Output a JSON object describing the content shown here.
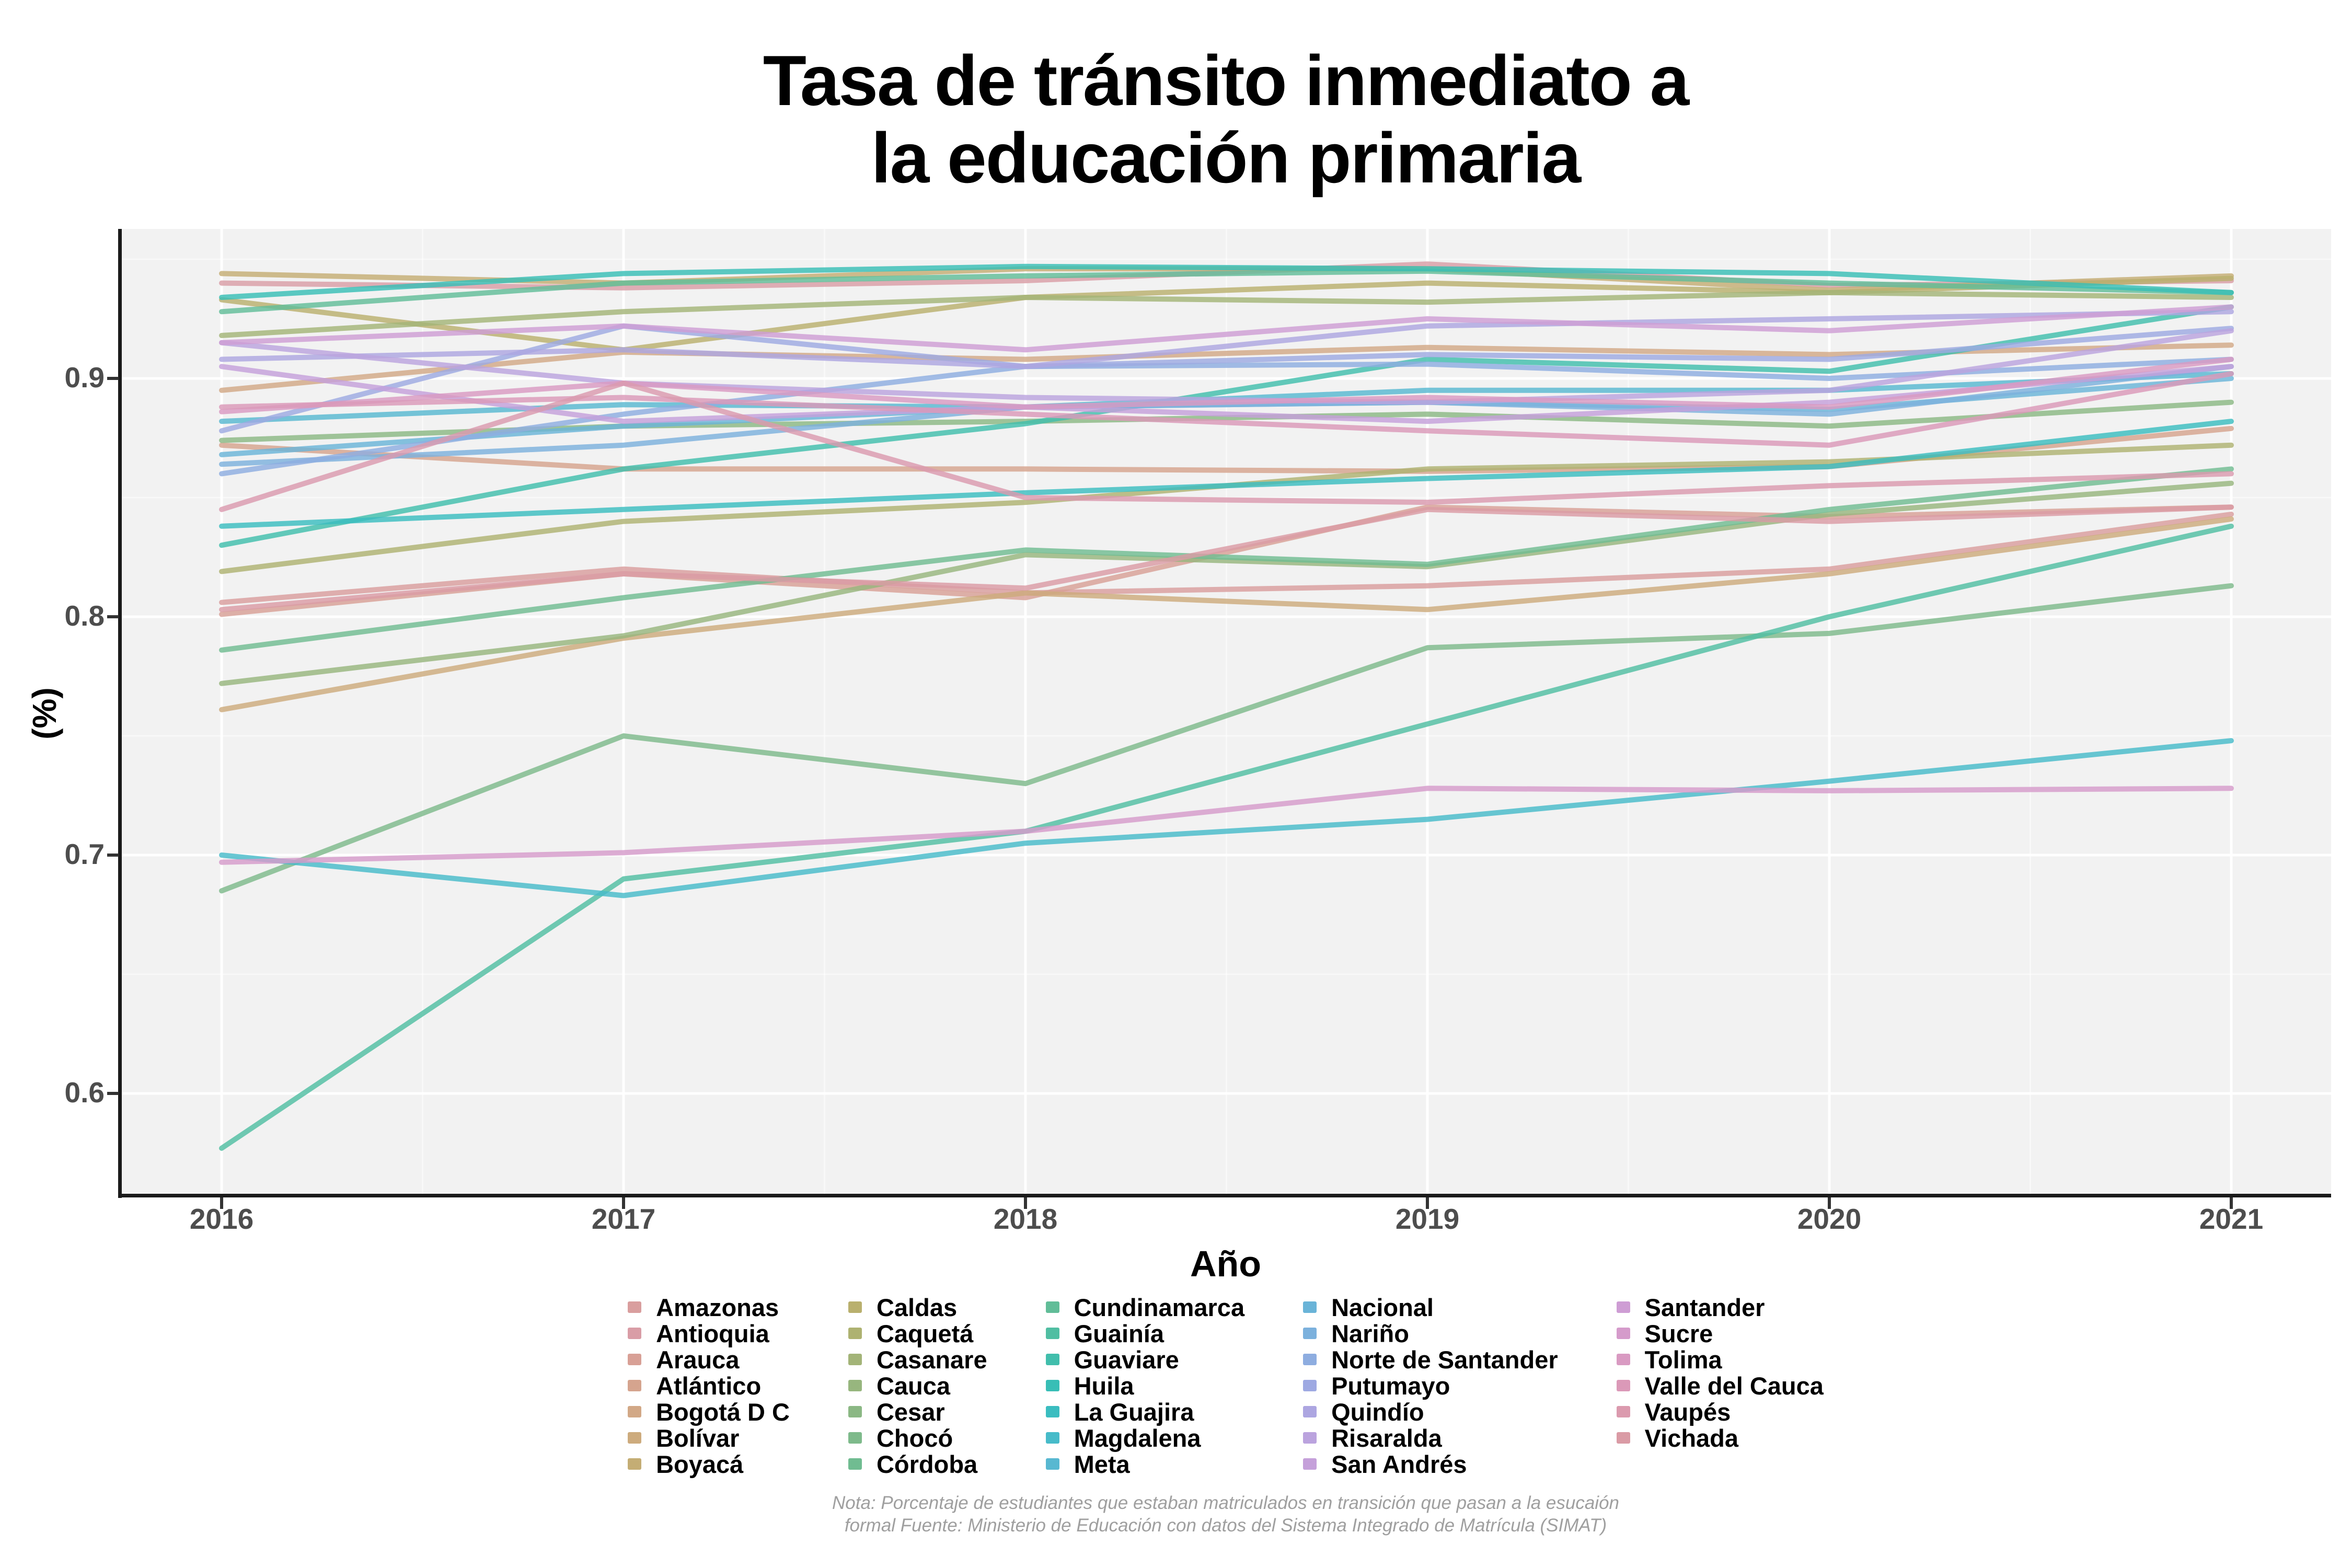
{
  "title": {
    "line1": "Tasa de tránsito inmediato a",
    "line2": "la educación primaria"
  },
  "x_axis": {
    "label": "Año",
    "tick_labels": [
      "2016",
      "2017",
      "2018",
      "2019",
      "2020",
      "2021"
    ]
  },
  "y_axis": {
    "label": "(%)",
    "tick_labels": [
      "0.9",
      "0.8",
      "0.7",
      "0.6"
    ]
  },
  "footnote": {
    "line1": "Nota: Porcentaje de estudiantes que estaban matriculados en transición que pasan a la esucaión",
    "line2": "formal Fuente: Ministerio de Educación con datos del Sistema Integrado de Matrícula (SIMAT)"
  },
  "colors": {
    "panel_bg": "#f2f2f2",
    "grid_major": "#ffffff",
    "grid_minor": "#ffffff",
    "axis_line": "#1a1a1a",
    "tick_mark": "#333333",
    "tick_label": "#4d4d4d",
    "footnote_text": "#9f9f9f"
  },
  "chart_data": {
    "type": "line",
    "title": "Tasa de tránsito inmediato a la educación primaria",
    "xlabel": "Año",
    "ylabel": "(%)",
    "x": [
      2016,
      2017,
      2018,
      2019,
      2020,
      2021
    ],
    "x_ticks": [
      2016,
      2017,
      2018,
      2019,
      2020,
      2021
    ],
    "y_ticks": [
      0.9,
      0.8,
      0.7,
      0.6
    ],
    "y_minor_ticks": [
      0.95,
      0.85,
      0.75,
      0.65
    ],
    "ylim": [
      0.558,
      0.962
    ],
    "grid": true,
    "legend_position": "bottom",
    "legend_columns": 5,
    "series": [
      {
        "name": "Amazonas",
        "color": "#d99e9e",
        "values": [
          0.806,
          0.82,
          0.81,
          0.813,
          0.82,
          0.843
        ]
      },
      {
        "name": "Antioquia",
        "color": "#d99da6",
        "values": [
          0.94,
          0.938,
          0.941,
          0.948,
          0.939,
          0.941
        ]
      },
      {
        "name": "Arauca",
        "color": "#d8a096",
        "values": [
          0.801,
          0.818,
          0.808,
          0.846,
          0.842,
          0.846
        ]
      },
      {
        "name": "Atlántico",
        "color": "#d5a48e",
        "values": [
          0.872,
          0.862,
          0.862,
          0.861,
          0.863,
          0.879
        ]
      },
      {
        "name": "Bogotá D C",
        "color": "#d2a886",
        "values": [
          0.895,
          0.911,
          0.908,
          0.913,
          0.91,
          0.914
        ]
      },
      {
        "name": "Bolívar",
        "color": "#cdab7d",
        "values": [
          0.761,
          0.791,
          0.81,
          0.803,
          0.818,
          0.841
        ]
      },
      {
        "name": "Boyacá",
        "color": "#c4ad74",
        "values": [
          0.944,
          0.94,
          0.946,
          0.946,
          0.937,
          0.943
        ]
      },
      {
        "name": "Caldas",
        "color": "#b9b06e",
        "values": [
          0.933,
          0.912,
          0.934,
          0.94,
          0.936,
          0.942
        ]
      },
      {
        "name": "Caquetá",
        "color": "#aeb271",
        "values": [
          0.819,
          0.84,
          0.848,
          0.862,
          0.865,
          0.872
        ]
      },
      {
        "name": "Casanare",
        "color": "#a3b478",
        "values": [
          0.918,
          0.928,
          0.934,
          0.932,
          0.936,
          0.934
        ]
      },
      {
        "name": "Cauca",
        "color": "#97b67e",
        "values": [
          0.772,
          0.792,
          0.826,
          0.821,
          0.843,
          0.856
        ]
      },
      {
        "name": "Cesar",
        "color": "#8bb884",
        "values": [
          0.874,
          0.88,
          0.882,
          0.885,
          0.88,
          0.89
        ]
      },
      {
        "name": "Chocó",
        "color": "#7eba8b",
        "values": [
          0.685,
          0.75,
          0.73,
          0.787,
          0.793,
          0.813
        ]
      },
      {
        "name": "Córdoba",
        "color": "#70bc91",
        "values": [
          0.786,
          0.808,
          0.828,
          0.822,
          0.845,
          0.862
        ]
      },
      {
        "name": "Cundinamarca",
        "color": "#61bd98",
        "values": [
          0.928,
          0.94,
          0.943,
          0.945,
          0.94,
          0.936
        ]
      },
      {
        "name": "Guainía",
        "color": "#50bea2",
        "values": [
          0.577,
          0.69,
          0.71,
          0.755,
          0.8,
          0.838
        ]
      },
      {
        "name": "Guaviare",
        "color": "#41beac",
        "values": [
          0.83,
          0.862,
          0.881,
          0.908,
          0.903,
          0.93
        ]
      },
      {
        "name": "Huila",
        "color": "#38beb6",
        "values": [
          0.934,
          0.944,
          0.947,
          0.946,
          0.944,
          0.936
        ]
      },
      {
        "name": "La Guajira",
        "color": "#3abdc0",
        "values": [
          0.838,
          0.845,
          0.852,
          0.858,
          0.863,
          0.882
        ]
      },
      {
        "name": "Magdalena",
        "color": "#47bbc9",
        "values": [
          0.7,
          0.683,
          0.705,
          0.715,
          0.731,
          0.748
        ]
      },
      {
        "name": "Meta",
        "color": "#58b8d1",
        "values": [
          0.882,
          0.889,
          0.888,
          0.895,
          0.895,
          0.902
        ]
      },
      {
        "name": "Nacional",
        "color": "#6ab4d8",
        "values": [
          0.868,
          0.88,
          0.888,
          0.89,
          0.887,
          0.9
        ]
      },
      {
        "name": "Nariño",
        "color": "#7cb1dd",
        "values": [
          0.864,
          0.872,
          0.888,
          0.89,
          0.885,
          0.905
        ]
      },
      {
        "name": "Norte de Santander",
        "color": "#8eade0",
        "values": [
          0.86,
          0.885,
          0.905,
          0.906,
          0.9,
          0.908
        ]
      },
      {
        "name": "Putumayo",
        "color": "#9ea9e2",
        "values": [
          0.878,
          0.922,
          0.905,
          0.91,
          0.908,
          0.921
        ]
      },
      {
        "name": "Quindío",
        "color": "#ada6e1",
        "values": [
          0.908,
          0.912,
          0.905,
          0.922,
          0.925,
          0.928
        ]
      },
      {
        "name": "Risaralda",
        "color": "#bba3de",
        "values": [
          0.915,
          0.898,
          0.892,
          0.89,
          0.895,
          0.92
        ]
      },
      {
        "name": "San Andrés",
        "color": "#c5a0da",
        "values": [
          0.905,
          0.882,
          0.888,
          0.882,
          0.89,
          0.905
        ]
      },
      {
        "name": "Santander",
        "color": "#ce9dd4",
        "values": [
          0.915,
          0.922,
          0.912,
          0.925,
          0.92,
          0.93
        ]
      },
      {
        "name": "Sucre",
        "color": "#d59bcb",
        "values": [
          0.697,
          0.701,
          0.71,
          0.728,
          0.727,
          0.728
        ]
      },
      {
        "name": "Tolima",
        "color": "#d99ac2",
        "values": [
          0.886,
          0.898,
          0.888,
          0.892,
          0.888,
          0.908
        ]
      },
      {
        "name": "Valle del Cauca",
        "color": "#db99b8",
        "values": [
          0.888,
          0.892,
          0.885,
          0.878,
          0.872,
          0.902
        ]
      },
      {
        "name": "Vaupés",
        "color": "#db9aae",
        "values": [
          0.845,
          0.898,
          0.85,
          0.848,
          0.855,
          0.86
        ]
      },
      {
        "name": "Vichada",
        "color": "#da9ba5",
        "values": [
          0.803,
          0.818,
          0.812,
          0.845,
          0.84,
          0.846
        ]
      }
    ]
  }
}
